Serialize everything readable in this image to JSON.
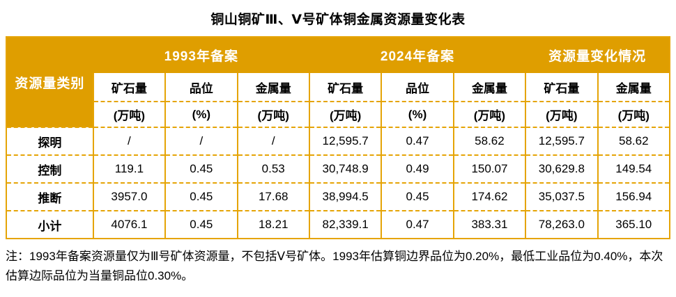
{
  "title": "铜山铜矿Ⅲ、Ⅴ号矿体铜金属资源量变化表",
  "colors": {
    "band_gold": "#DF9E00",
    "border_gold": "#E5A406",
    "band_text": "#FFFFFF",
    "text": "#000000"
  },
  "table": {
    "category_header": "资源量类别",
    "groups": [
      {
        "label": "1993年备案",
        "span": 3
      },
      {
        "label": "2024年备案",
        "span": 3
      },
      {
        "label": "资源量变化情况",
        "span": 2
      }
    ],
    "columns": [
      {
        "label": "矿石量",
        "unit": "(万吨)"
      },
      {
        "label": "品位",
        "unit": "(%)"
      },
      {
        "label": "金属量",
        "unit": "(万吨)"
      },
      {
        "label": "矿石量",
        "unit": "(万吨)"
      },
      {
        "label": "品位",
        "unit": "(%)"
      },
      {
        "label": "金属量",
        "unit": "(万吨)"
      },
      {
        "label": "矿石量",
        "unit": "(万吨)"
      },
      {
        "label": "金属量",
        "unit": "(万吨)"
      }
    ],
    "rows": [
      {
        "category": "探明",
        "values": [
          "/",
          "/",
          "/",
          "12,595.7",
          "0.47",
          "58.62",
          "12,595.7",
          "58.62"
        ]
      },
      {
        "category": "控制",
        "values": [
          "119.1",
          "0.45",
          "0.53",
          "30,748.9",
          "0.49",
          "150.07",
          "30,629.8",
          "149.54"
        ]
      },
      {
        "category": "推断",
        "values": [
          "3957.0",
          "0.45",
          "17.68",
          "38,994.5",
          "0.45",
          "174.62",
          "35,037.5",
          "156.94"
        ]
      },
      {
        "category": "小计",
        "values": [
          "4076.1",
          "0.45",
          "18.21",
          "82,339.1",
          "0.47",
          "383.31",
          "78,263.0",
          "365.10"
        ]
      }
    ]
  },
  "note": "注：1993年备案资源量仅为Ⅲ号矿体资源量，不包括Ⅴ号矿体。1993年估算铜边界品位为0.20%，最低工业品位为0.40%，本次估算边际品位为当量铜品位0.30%。"
}
